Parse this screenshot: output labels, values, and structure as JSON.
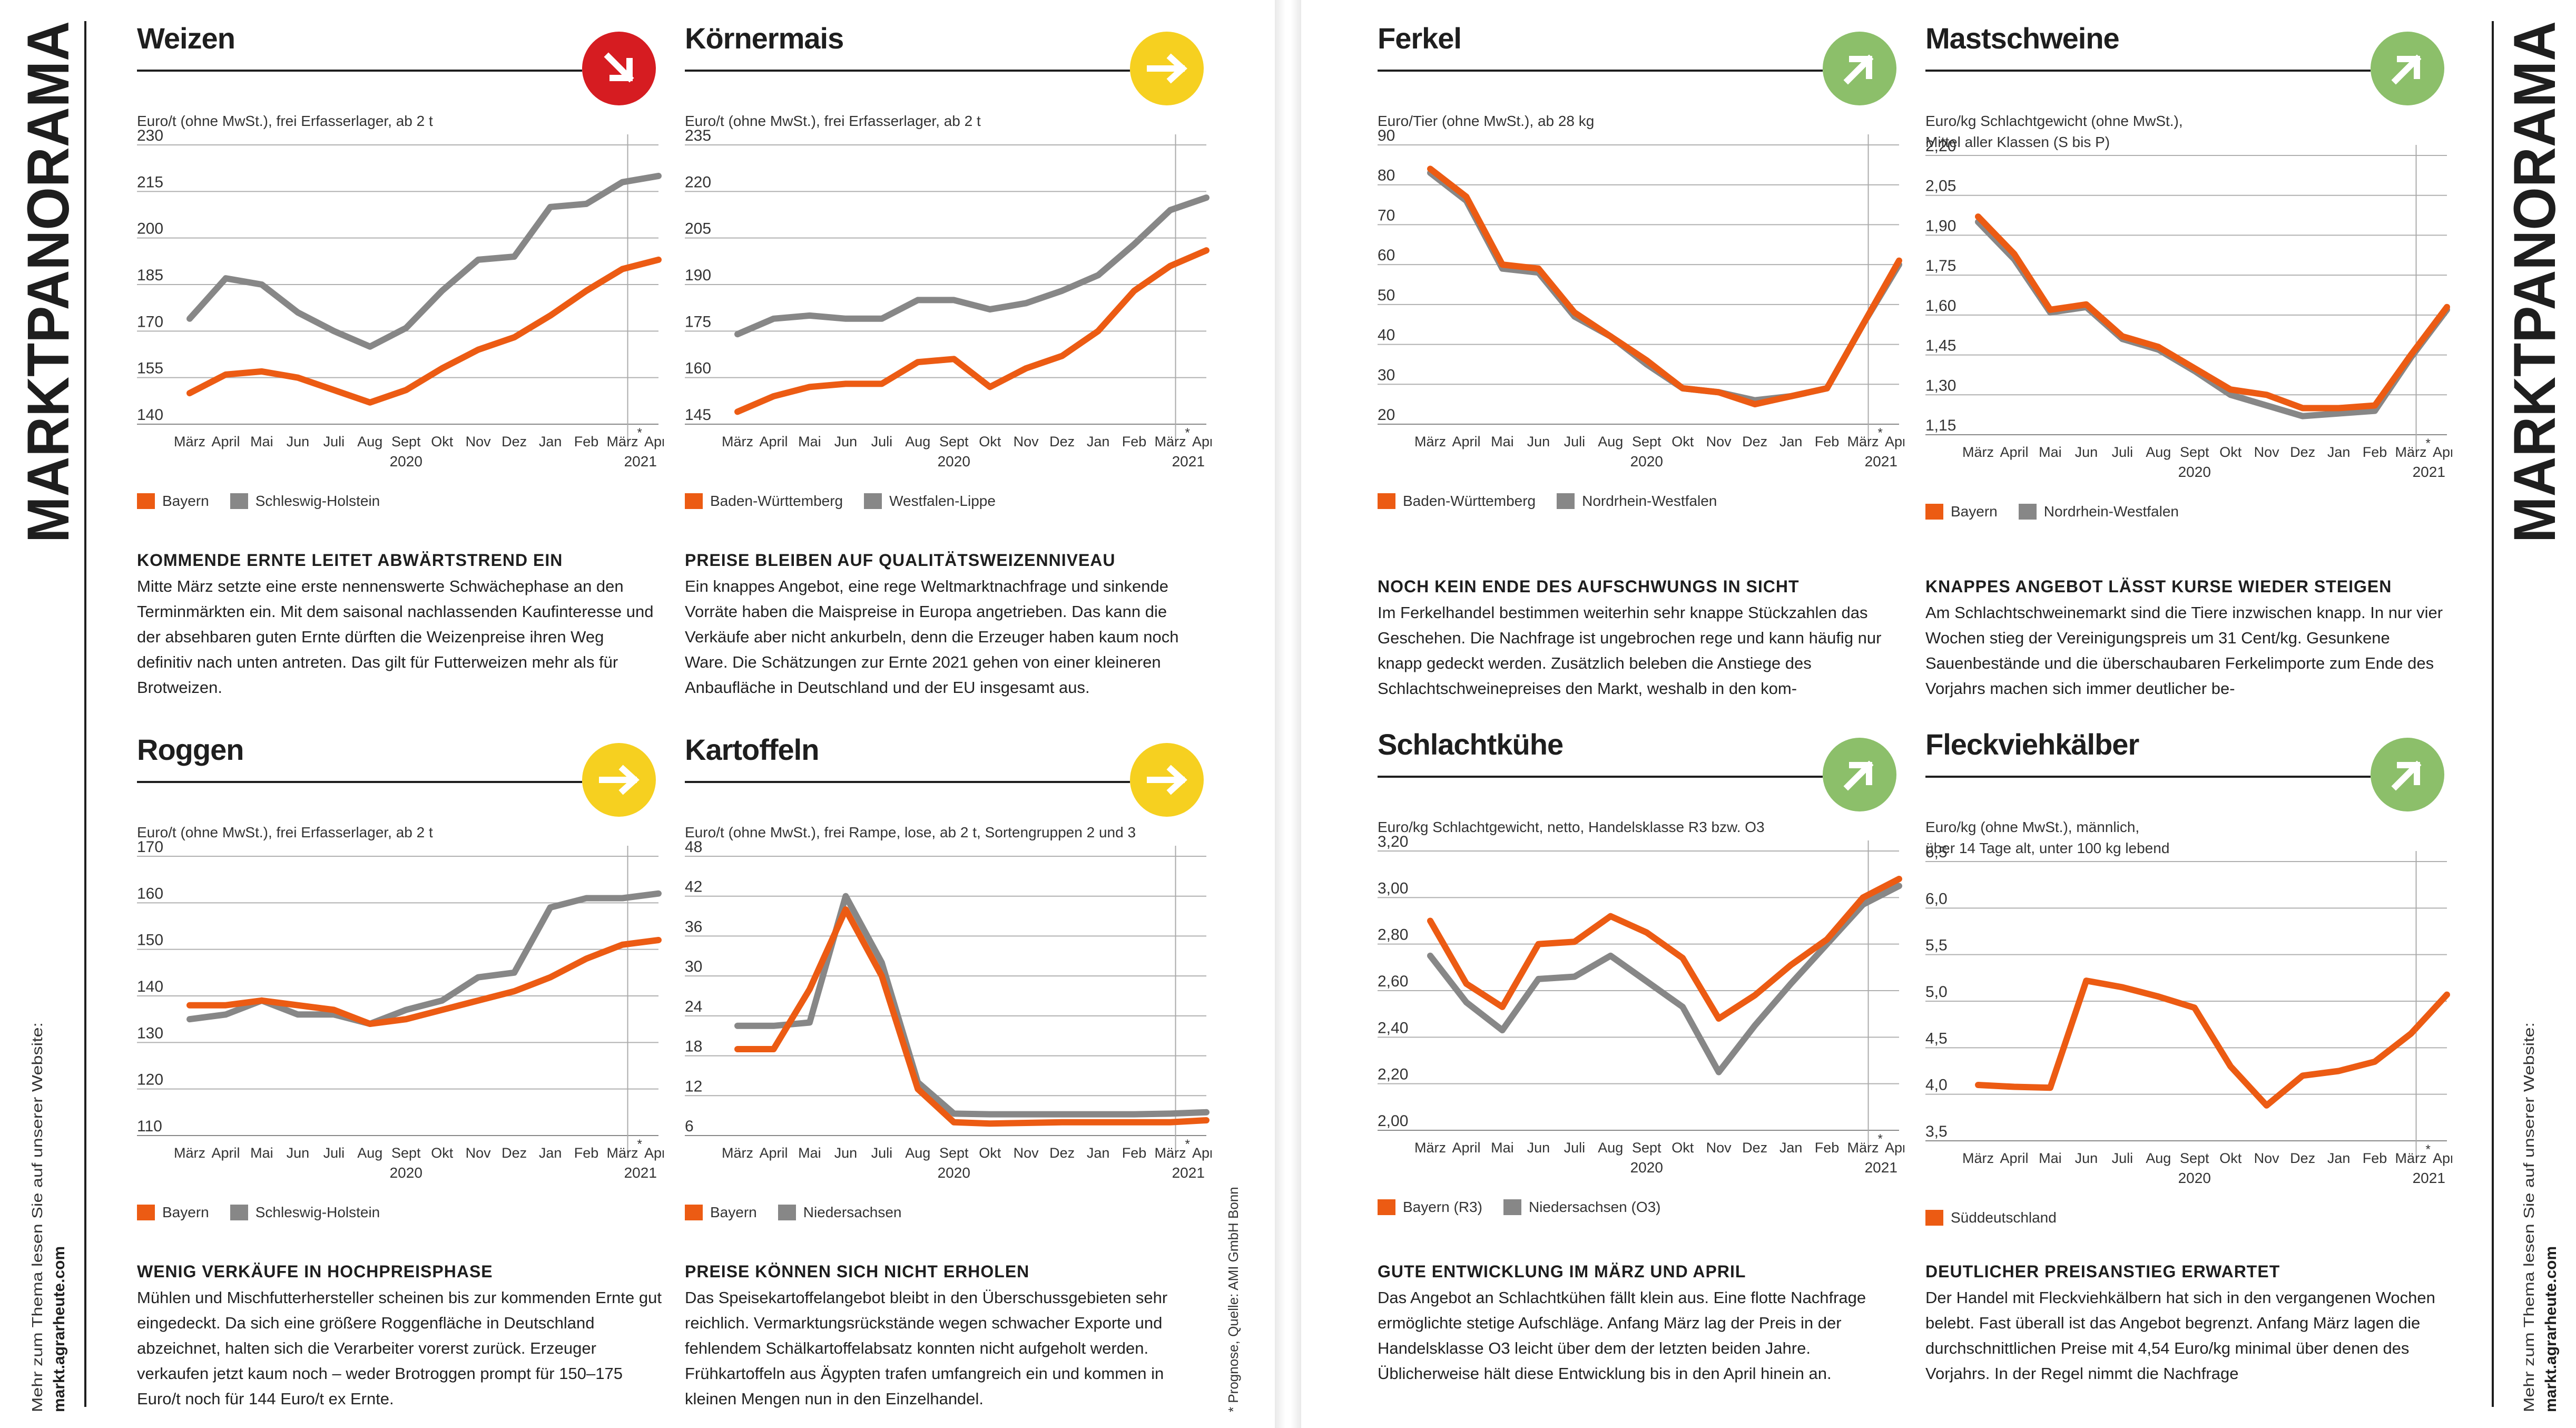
{
  "side": {
    "title": "MARKTPANORAMA",
    "note_line1": "Mehr zum Thema lesen Sie auf unserer Website:",
    "note_line2": "markt.agrarheute.com"
  },
  "footnote": "* Prognose, Quelle: AMI GmbH Bonn",
  "colors": {
    "orange": "#ec5b13",
    "grey": "#878787",
    "red": "#d61c21",
    "yellow": "#f6d020",
    "green": "#8cbf6a"
  },
  "months": [
    "März",
    "April",
    "Mai",
    "Jun",
    "Juli",
    "Aug",
    "Sept",
    "Okt",
    "Nov",
    "Dez",
    "Jan",
    "Feb",
    "März",
    "April"
  ],
  "year_labels": [
    "2020",
    "2021"
  ],
  "star": "*",
  "panels": [
    {
      "title": "Weizen",
      "trend": "down",
      "trend_icon": "arrow-down-right-icon",
      "trend_color": "#d61c21",
      "unit": "Euro/t (ohne MwSt.), frei Erfasserlager, ab 2 t",
      "headline": "KOMMENDE ERNTE LEITET ABWÄRTSTREND EIN",
      "text": "Mitte März setzte eine erste nennenswerte Schwächephase an den Terminmärkten ein. Mit dem saisonal nachlassenden Kaufinteresse und der absehbaren guten Ernte dürften die Weizenpreise ihren Weg definitiv nach unten antreten. Das gilt für Futterweizen mehr als für Brotweizen.",
      "chart_data": {
        "type": "line",
        "x": [
          "März",
          "April",
          "Mai",
          "Jun",
          "Juli",
          "Aug",
          "Sept",
          "Okt",
          "Nov",
          "Dez",
          "Jan",
          "Feb",
          "März",
          "April"
        ],
        "ylim": [
          140,
          230
        ],
        "yticks": [
          140,
          155,
          170,
          185,
          200,
          215,
          230
        ],
        "series": [
          {
            "name": "Bayern",
            "color": "#ec5b13",
            "values": [
              150,
              156,
              157,
              155,
              151,
              147,
              151,
              158,
              164,
              168,
              175,
              183,
              190,
              193
            ]
          },
          {
            "name": "Schleswig-Holstein",
            "color": "#878787",
            "values": [
              174,
              187,
              185,
              176,
              170,
              165,
              171,
              183,
              193,
              194,
              210,
              211,
              218,
              220
            ]
          }
        ]
      }
    },
    {
      "title": "Körnermais",
      "trend": "right",
      "trend_icon": "arrow-right-icon",
      "trend_color": "#f6d020",
      "unit": "Euro/t (ohne MwSt.), frei Erfasserlager, ab 2 t",
      "headline": "PREISE BLEIBEN AUF QUALITÄTSWEIZENNIVEAU",
      "text": "Ein knappes Angebot, eine rege Weltmarktnachfrage und sinkende Vorräte haben die Maispreise in Europa angetrieben. Das kann die Verkäufe aber nicht ankurbeln, denn die Erzeuger haben kaum noch Ware. Die Schätzungen zur Ernte 2021 gehen von einer kleineren Anbaufläche in Deutschland und der EU insgesamt aus.",
      "chart_data": {
        "type": "line",
        "x": [
          "März",
          "April",
          "Mai",
          "Jun",
          "Juli",
          "Aug",
          "Sept",
          "Okt",
          "Nov",
          "Dez",
          "Jan",
          "Feb",
          "März",
          "April"
        ],
        "ylim": [
          145,
          235
        ],
        "yticks": [
          145,
          160,
          175,
          190,
          205,
          220,
          235
        ],
        "series": [
          {
            "name": "Baden-Württemberg",
            "color": "#ec5b13",
            "values": [
              149,
              154,
              157,
              158,
              158,
              165,
              166,
              157,
              163,
              167,
              175,
              188,
              196,
              201
            ]
          },
          {
            "name": "Westfalen-Lippe",
            "color": "#878787",
            "values": [
              174,
              179,
              180,
              179,
              179,
              185,
              185,
              182,
              184,
              188,
              193,
              203,
              214,
              218
            ]
          }
        ]
      }
    },
    {
      "title": "Roggen",
      "trend": "right",
      "trend_icon": "arrow-right-icon",
      "trend_color": "#f6d020",
      "unit": "Euro/t (ohne MwSt.), frei Erfasserlager, ab 2 t",
      "headline": "WENIG VERKÄUFE IN HOCHPREISPHASE",
      "text": "Mühlen und Mischfutterhersteller scheinen bis zur kommenden Ernte gut eingedeckt. Da sich eine größere Roggenfläche in Deutschland abzeichnet, halten sich die Verarbeiter vorerst zurück. Erzeuger verkaufen jetzt kaum noch – weder Brotroggen prompt für 150–175 Euro/t noch für 144 Euro/t ex Ernte.",
      "chart_data": {
        "type": "line",
        "x": [
          "März",
          "April",
          "Mai",
          "Jun",
          "Juli",
          "Aug",
          "Sept",
          "Okt",
          "Nov",
          "Dez",
          "Jan",
          "Feb",
          "März",
          "April"
        ],
        "ylim": [
          110,
          170
        ],
        "yticks": [
          110,
          120,
          130,
          140,
          150,
          160,
          170
        ],
        "series": [
          {
            "name": "Bayern",
            "color": "#ec5b13",
            "values": [
              138,
              138,
              139,
              138,
              137,
              134,
              135,
              137,
              139,
              141,
              144,
              148,
              151,
              152
            ]
          },
          {
            "name": "Schleswig-Holstein",
            "color": "#878787",
            "values": [
              135,
              136,
              139,
              136,
              136,
              134,
              137,
              139,
              144,
              145,
              159,
              161,
              161,
              162
            ]
          }
        ]
      }
    },
    {
      "title": "Kartoffeln",
      "trend": "right",
      "trend_icon": "arrow-right-icon",
      "trend_color": "#f6d020",
      "unit": "Euro/t (ohne MwSt.), frei Rampe, lose, ab 2 t, Sortengruppen 2 und 3",
      "headline": "PREISE KÖNNEN SICH NICHT ERHOLEN",
      "text": "Das Speisekartoffelangebot bleibt in den Überschussgebieten sehr reichlich. Vermarktungsrückstände wegen schwacher Exporte und fehlendem Schälkartoffelabsatz konnten nicht aufgeholt werden. Frühkartoffeln aus Ägypten trafen umfangreich ein und kommen in kleinen Mengen nun in den Einzelhandel.",
      "chart_data": {
        "type": "line",
        "x": [
          "März",
          "April",
          "Mai",
          "Jun",
          "Juli",
          "Aug",
          "Sept",
          "Okt",
          "Nov",
          "Dez",
          "Jan",
          "Feb",
          "März",
          "April"
        ],
        "ylim": [
          6,
          48
        ],
        "yticks": [
          6,
          12,
          18,
          24,
          30,
          36,
          42,
          48
        ],
        "series": [
          {
            "name": "Bayern",
            "color": "#ec5b13",
            "values": [
              19,
              19,
              28,
              40,
              30,
              13,
              8,
              7.8,
              7.9,
              8,
              8,
              8,
              8,
              8.3
            ]
          },
          {
            "name": "Niedersachsen",
            "color": "#878787",
            "values": [
              22.5,
              22.5,
              23,
              42,
              32,
              14,
              9.3,
              9.2,
              9.2,
              9.2,
              9.2,
              9.2,
              9.3,
              9.5
            ]
          }
        ]
      }
    },
    {
      "title": "Ferkel",
      "trend": "up",
      "trend_icon": "arrow-up-right-icon",
      "trend_color": "#8cbf6a",
      "unit": "Euro/Tier (ohne MwSt.), ab 28 kg",
      "headline": "NOCH KEIN ENDE DES AUFSCHWUNGS IN SICHT",
      "text": "Im Ferkelhandel bestimmen weiterhin sehr knappe Stückzahlen das Geschehen. Die Nachfrage ist ungebrochen rege und kann häufig nur knapp gedeckt werden. Zusätzlich beleben die Anstiege des Schlachtschweinepreises den Markt, weshalb in den kom-",
      "chart_data": {
        "type": "line",
        "x": [
          "März",
          "April",
          "Mai",
          "Jun",
          "Juli",
          "Aug",
          "Sept",
          "Okt",
          "Nov",
          "Dez",
          "Jan",
          "Feb",
          "März",
          "April"
        ],
        "ylim": [
          20,
          90
        ],
        "yticks": [
          20,
          30,
          40,
          50,
          60,
          70,
          80,
          90
        ],
        "series": [
          {
            "name": "Baden-Württemberg",
            "color": "#ec5b13",
            "values": [
              84,
              77,
              60,
              59,
              48,
              42,
              36,
              29,
              28,
              25,
              27,
              29,
              45,
              61
            ]
          },
          {
            "name": "Nordrhein-Westfalen",
            "color": "#878787",
            "values": [
              83,
              76,
              59,
              58,
              47,
              42,
              35,
              29,
              28,
              26,
              27,
              29,
              45,
              60
            ]
          }
        ]
      }
    },
    {
      "title": "Mastschweine",
      "trend": "up",
      "trend_icon": "arrow-up-right-icon",
      "trend_color": "#8cbf6a",
      "unit": "Euro/kg Schlachtgewicht (ohne MwSt.),\nMittel aller Klassen (S bis P)",
      "headline": "KNAPPES ANGEBOT LÄSST KURSE WIEDER STEIGEN",
      "text": "Am Schlachtschweinemarkt sind die Tiere inzwischen knapp. In nur vier Wochen stieg der Vereinigungspreis um 31 Cent/kg. Gesunkene Sauenbestände und die überschaubaren Ferkelimporte zum Ende des Vorjahrs machen sich immer deutlicher be-",
      "chart_data": {
        "type": "line",
        "x": [
          "März",
          "April",
          "Mai",
          "Jun",
          "Juli",
          "Aug",
          "Sept",
          "Okt",
          "Nov",
          "Dez",
          "Jan",
          "Feb",
          "März",
          "April"
        ],
        "ylim": [
          1.15,
          2.2
        ],
        "yticks": [
          "1,15",
          "1,30",
          "1,45",
          "1,60",
          "1,75",
          "1,90",
          "2,05",
          "2,20"
        ],
        "series": [
          {
            "name": "Bayern",
            "color": "#ec5b13",
            "values": [
              1.97,
              1.83,
              1.62,
              1.64,
              1.52,
              1.48,
              1.4,
              1.32,
              1.3,
              1.25,
              1.25,
              1.26,
              1.45,
              1.63
            ]
          },
          {
            "name": "Nordrhein-Westfalen",
            "color": "#878787",
            "values": [
              1.95,
              1.81,
              1.61,
              1.63,
              1.51,
              1.47,
              1.39,
              1.3,
              1.26,
              1.22,
              1.23,
              1.24,
              1.44,
              1.62
            ]
          }
        ]
      }
    },
    {
      "title": "Schlachtkühe",
      "trend": "up",
      "trend_icon": "arrow-up-right-icon",
      "trend_color": "#8cbf6a",
      "unit": "Euro/kg Schlachtgewicht, netto, Handelsklasse R3 bzw. O3",
      "headline": "GUTE ENTWICKLUNG IM MÄRZ UND APRIL",
      "text": "Das Angebot an Schlachtkühen fällt klein aus. Eine flotte Nachfrage ermöglichte stetige Aufschläge. Anfang März lag der Preis in der Handelsklasse O3 leicht über dem der letzten beiden Jahre. Üblicherweise hält diese Entwicklung bis in den April hinein an.",
      "chart_data": {
        "type": "line",
        "x": [
          "März",
          "April",
          "Mai",
          "Jun",
          "Juli",
          "Aug",
          "Sept",
          "Okt",
          "Nov",
          "Dez",
          "Jan",
          "Feb",
          "März",
          "April"
        ],
        "ylim": [
          2.0,
          3.2
        ],
        "yticks": [
          "2,00",
          "2,20",
          "2,40",
          "2,60",
          "2,80",
          "3,00",
          "3,20"
        ],
        "series": [
          {
            "name": "Bayern (R3)",
            "color": "#ec5b13",
            "values": [
              2.9,
              2.63,
              2.53,
              2.8,
              2.81,
              2.92,
              2.85,
              2.74,
              2.48,
              2.58,
              2.71,
              2.82,
              3.0,
              3.08
            ]
          },
          {
            "name": "Niedersachsen (O3)",
            "color": "#878787",
            "values": [
              2.75,
              2.55,
              2.43,
              2.65,
              2.66,
              2.75,
              2.64,
              2.53,
              2.25,
              2.45,
              2.63,
              2.8,
              2.97,
              3.05
            ]
          }
        ]
      }
    },
    {
      "title": "Fleckviehkälber",
      "trend": "up",
      "trend_icon": "arrow-up-right-icon",
      "trend_color": "#8cbf6a",
      "unit": "Euro/kg (ohne MwSt.), männlich,\nüber 14 Tage alt, unter 100 kg lebend",
      "headline": "DEUTLICHER PREISANSTIEG ERWARTET",
      "text": "Der Handel mit Fleckviehkälbern hat sich in den vergangenen Wochen belebt. Fast überall ist das Angebot begrenzt. Anfang März lagen die durchschnittlichen Preise mit 4,54 Euro/kg minimal über denen des Vorjahrs. In der Regel nimmt die Nachfrage",
      "chart_data": {
        "type": "line",
        "x": [
          "März",
          "April",
          "Mai",
          "Jun",
          "Juli",
          "Aug",
          "Sept",
          "Okt",
          "Nov",
          "Dez",
          "Jan",
          "Feb",
          "März",
          "April"
        ],
        "ylim": [
          3.5,
          6.5
        ],
        "yticks": [
          "3,5",
          "4,0",
          "4,5",
          "5,0",
          "5,5",
          "6,0",
          "6,5"
        ],
        "series": [
          {
            "name": "Süddeutschland",
            "color": "#ec5b13",
            "values": [
              4.1,
              4.08,
              4.07,
              5.22,
              5.15,
              5.05,
              4.93,
              4.3,
              3.88,
              4.2,
              4.25,
              4.35,
              4.65,
              5.07
            ]
          }
        ]
      }
    }
  ]
}
